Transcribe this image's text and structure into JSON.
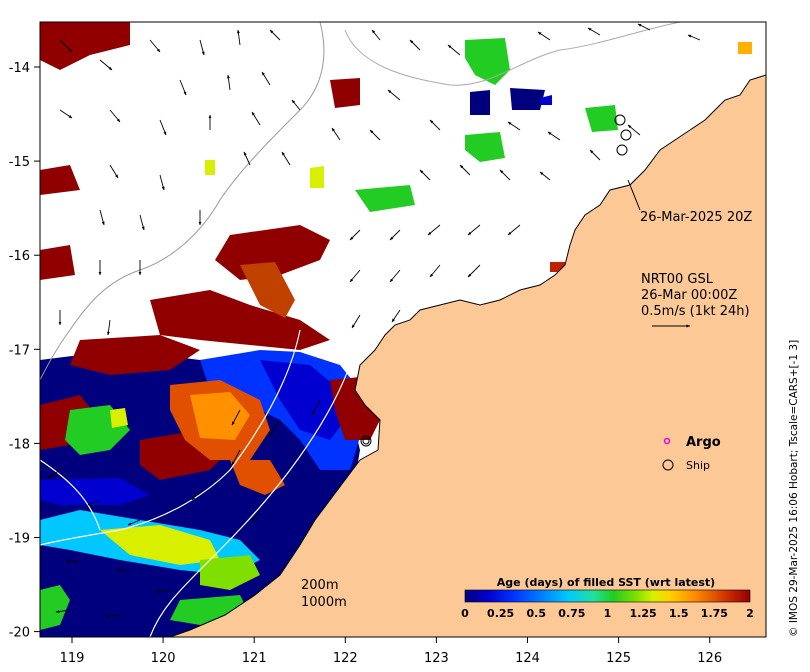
{
  "map": {
    "credit": "© IMOS 29-Mar-2025 16:06 Hobart; Tscale=CARS+[-1 3]",
    "x_ticks": [
      "119",
      "120",
      "121",
      "122",
      "123",
      "124",
      "125",
      "126"
    ],
    "y_ticks": [
      "-14",
      "-15",
      "-16",
      "-17",
      "-18",
      "-19",
      "-20"
    ],
    "annotations": {
      "satellite_pass": "26-Mar-2025 20Z",
      "current_source": "NRT00 GSL",
      "current_time": "26-Mar 00:00Z",
      "current_scale": "0.5m/s (1kt 24h)",
      "argo_label": "Argo",
      "ship_label": "Ship",
      "contour_200": "200m",
      "contour_1000": "1000m"
    },
    "colors": {
      "land": "#fcc896",
      "argo": "#e600e6",
      "no_data": "#ffffff"
    },
    "colorbar": {
      "title": "Age (days) of filled SST (wrt latest)",
      "tick_labels": [
        "0",
        "0.25",
        "0.5",
        "0.75",
        "1",
        "1.25",
        "1.5",
        "1.75",
        "2"
      ],
      "range": [
        0,
        2
      ],
      "colors": [
        "#00007f",
        "#0000d0",
        "#0033ff",
        "#0080ff",
        "#00c8ff",
        "#20e0a0",
        "#22cc22",
        "#7fe000",
        "#d8f000",
        "#ffd000",
        "#ff9000",
        "#e05000",
        "#c02000",
        "#900000"
      ]
    }
  }
}
